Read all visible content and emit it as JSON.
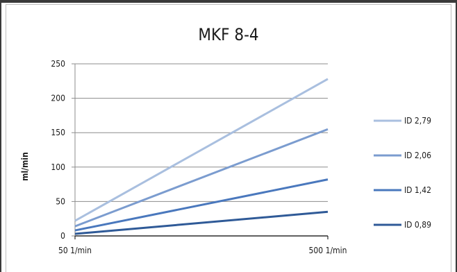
{
  "chart_data": {
    "type": "line",
    "title": "MKF 8-4",
    "xlabel": "",
    "ylabel": "ml/min",
    "categories": [
      "50 1/min",
      "500 1/min"
    ],
    "ylim": [
      0,
      250
    ],
    "yticks": [
      0,
      50,
      100,
      150,
      200,
      250
    ],
    "grid": true,
    "legend_position": "right",
    "series": [
      {
        "name": "ID 2,79",
        "values": [
          22,
          228
        ],
        "color": "#a9bfdf"
      },
      {
        "name": "ID 2,06",
        "values": [
          14,
          155
        ],
        "color": "#7b9ccf"
      },
      {
        "name": "ID 1,42",
        "values": [
          8,
          82
        ],
        "color": "#4a78bd"
      },
      {
        "name": "ID 0,89",
        "values": [
          3,
          35
        ],
        "color": "#2f5a97"
      }
    ]
  }
}
